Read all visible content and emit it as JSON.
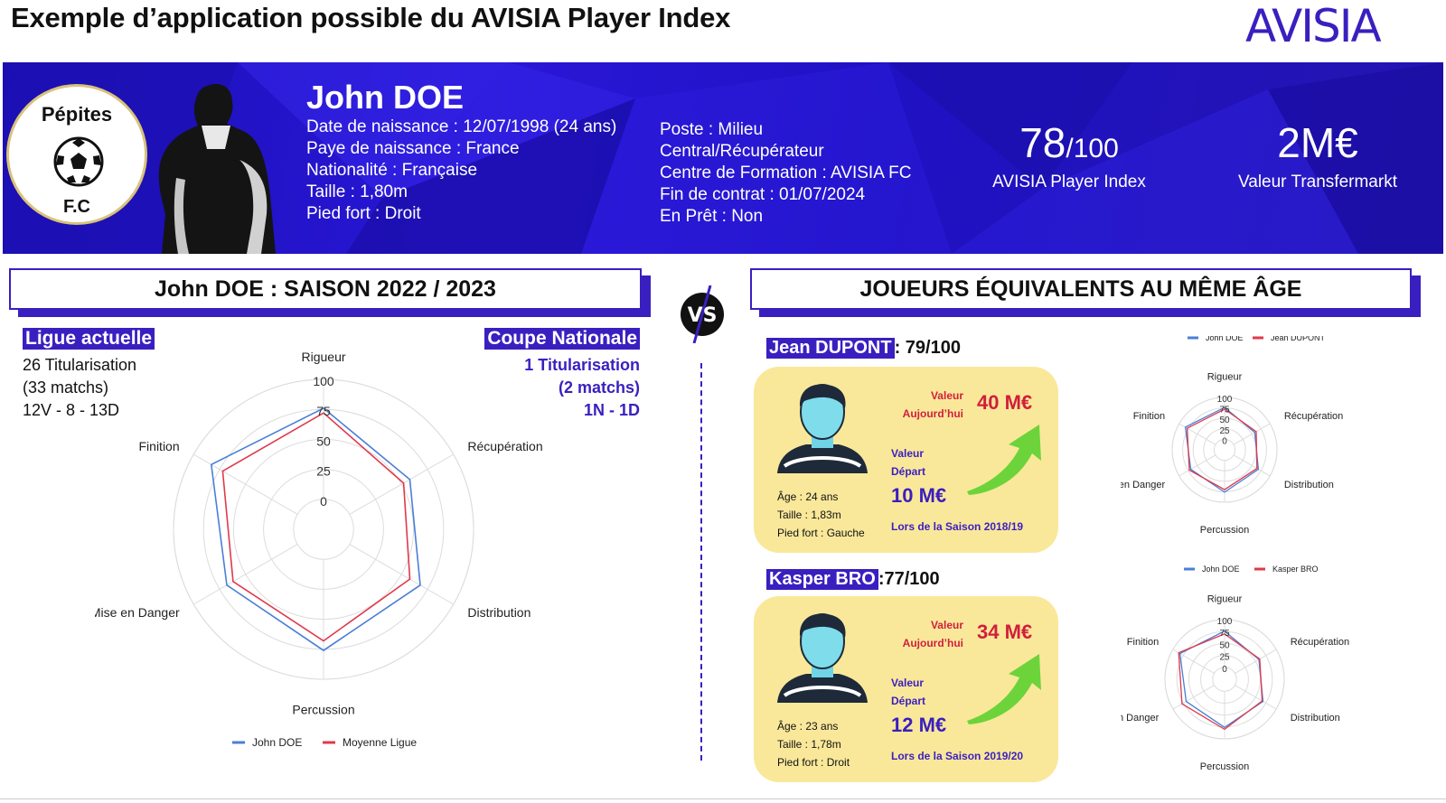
{
  "header": {
    "title": "Exemple d’application possible du AVISIA Player Index",
    "logo_text": "AVISIA"
  },
  "colors": {
    "accent": "#3a1fc0",
    "banner": "#2416c8",
    "john": "#4a7fd6",
    "other": "#e0394a",
    "card": "#fae89a",
    "value_red": "#d01f3c"
  },
  "banner": {
    "club_name": "Pépites",
    "club_suffix": "F.C",
    "player_name": "John DOE",
    "info_left": [
      "Date de naissance : 12/07/1998 (24 ans)",
      "Paye de naissance : France",
      "Nationalité : Française",
      "Taille :  1,80m",
      "Pied fort : Droit"
    ],
    "info_right": [
      "Poste : Milieu",
      "Central/Récupérateur",
      "Centre de Formation : AVISIA FC",
      "Fin de contrat : 01/07/2024",
      "En Prêt : Non"
    ],
    "index_value": "78",
    "index_max": "/100",
    "index_label": "AVISIA Player Index",
    "transfer_value": "2M€",
    "transfer_label": "Valeur Transfermarkt"
  },
  "left_section": {
    "title": "John DOE : SAISON 2022 / 2023",
    "ligue_title": "Ligue actuelle",
    "ligue_lines": [
      "26 Titularisation",
      "(33 matchs)",
      "12V - 8 - 13D"
    ],
    "coupe_title": "Coupe Nationale",
    "coupe_lines": [
      "1 Titularisation",
      "(2 matchs)",
      "1N - 1D"
    ]
  },
  "vs_label": "VS",
  "right_section": {
    "title": "JOUEURS ÉQUIVALENTS AU MÊME ÂGE",
    "players": [
      {
        "name": "Jean DUPONT",
        "score": ": 79/100",
        "value_today_label1": "Valeur",
        "value_today_label2": "Aujourd’hui",
        "value_today": "40 M€",
        "value_start_label1": "Valeur",
        "value_start_label2": "Départ",
        "value_start": "10 M€",
        "season": "Lors de la Saison 2018/19",
        "age": "Âge : 24 ans",
        "height": "Taille : 1,83m",
        "foot": "Pied fort : Gauche"
      },
      {
        "name": "Kasper BRO",
        "score": ":77/100",
        "value_today_label1": "Valeur",
        "value_today_label2": "Aujourd’hui",
        "value_today": "34 M€",
        "value_start_label1": "Valeur",
        "value_start_label2": "Départ",
        "value_start": "12 M€",
        "season": "Lors de la Saison 2019/20",
        "age": "Âge : 23 ans",
        "height": "Taille : 1,78m",
        "foot": "Pied fort : Droit"
      }
    ]
  },
  "chart_data": [
    {
      "type": "radar",
      "axes": [
        "Rigueur",
        "Récupération",
        "Distribution",
        "Percussion",
        "Mise en Danger",
        "Finition"
      ],
      "ticks": [
        "0",
        "25",
        "50",
        "75",
        "100"
      ],
      "rlim": [
        0,
        100
      ],
      "series": [
        {
          "name": "John DOE",
          "values": [
            76,
            58,
            68,
            76,
            68,
            83
          ]
        },
        {
          "name": "Moyenne Ligue",
          "values": [
            72,
            52,
            58,
            68,
            62,
            72
          ]
        }
      ],
      "legend": "bottom"
    },
    {
      "type": "radar",
      "axes": [
        "Rigueur",
        "Récupération",
        "Distribution",
        "Percussion",
        "Mise en Danger",
        "Finition"
      ],
      "ticks": [
        "0",
        "25",
        "50",
        "75",
        "100"
      ],
      "rlim": [
        0,
        100
      ],
      "series": [
        {
          "name": "John DOE",
          "values": [
            76,
            58,
            68,
            76,
            68,
            83
          ]
        },
        {
          "name": "Jean DUPONT",
          "values": [
            72,
            62,
            64,
            70,
            72,
            78
          ]
        }
      ],
      "legend": "top"
    },
    {
      "type": "radar",
      "axes": [
        "Rigueur",
        "Récupération",
        "Distribution",
        "Percussion",
        "Mise en Danger",
        "Finition"
      ],
      "ticks": [
        "0",
        "25",
        "50",
        "75",
        "100"
      ],
      "rlim": [
        0,
        100
      ],
      "series": [
        {
          "name": "John DOE",
          "values": [
            76,
            58,
            68,
            76,
            68,
            83
          ]
        },
        {
          "name": "Kasper BRO",
          "values": [
            70,
            60,
            66,
            80,
            78,
            86
          ]
        }
      ],
      "legend": "top"
    }
  ]
}
